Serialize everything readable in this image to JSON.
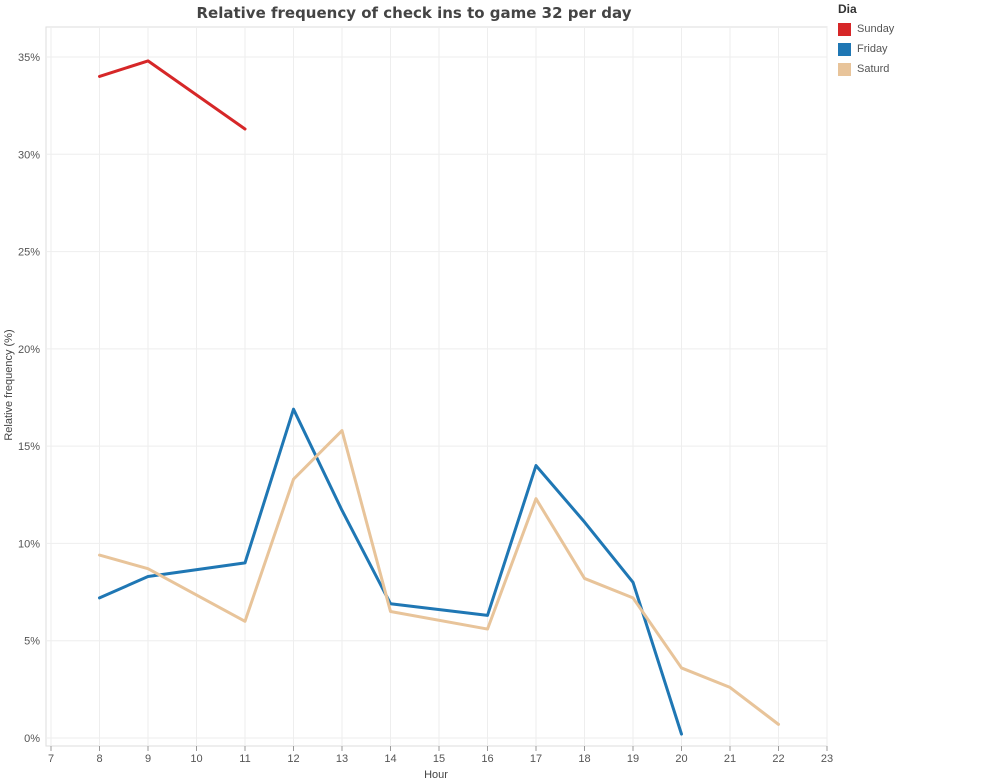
{
  "chart_data": {
    "type": "line",
    "title": "Relative frequency of check ins to game 32 per day",
    "xlabel": "Hour",
    "ylabel": "Relative frequency (%)",
    "xlim": [
      7,
      23
    ],
    "x_ticks": [
      "7",
      "8",
      "9",
      "10",
      "11",
      "12",
      "13",
      "14",
      "15",
      "16",
      "17",
      "18",
      "19",
      "20",
      "21",
      "22",
      "23"
    ],
    "ylim": [
      0,
      36
    ],
    "y_ticks": [
      "0%",
      "5%",
      "10%",
      "15%",
      "20%",
      "25%",
      "30%",
      "35%"
    ],
    "grid": true,
    "legend_title": "Dia",
    "legend_position": "top-right",
    "series": [
      {
        "name": "Sunday",
        "color": "#d62728",
        "x": [
          8,
          9,
          11
        ],
        "y": [
          34.0,
          34.8,
          31.3
        ]
      },
      {
        "name": "Friday",
        "color": "#1f77b4",
        "x": [
          8,
          9,
          11,
          12,
          13,
          14,
          16,
          17,
          18,
          19,
          20
        ],
        "y": [
          7.2,
          8.3,
          9.0,
          16.9,
          11.7,
          6.9,
          6.3,
          14.0,
          11.1,
          8.0,
          0.2
        ]
      },
      {
        "name": "Saturd",
        "color": "#e8c49a",
        "x": [
          8,
          9,
          11,
          12,
          13,
          14,
          16,
          17,
          18,
          19,
          20,
          21,
          22
        ],
        "y": [
          9.4,
          8.7,
          6.0,
          13.3,
          15.8,
          6.5,
          5.6,
          12.3,
          8.2,
          7.2,
          3.6,
          2.6,
          0.7
        ]
      }
    ]
  }
}
